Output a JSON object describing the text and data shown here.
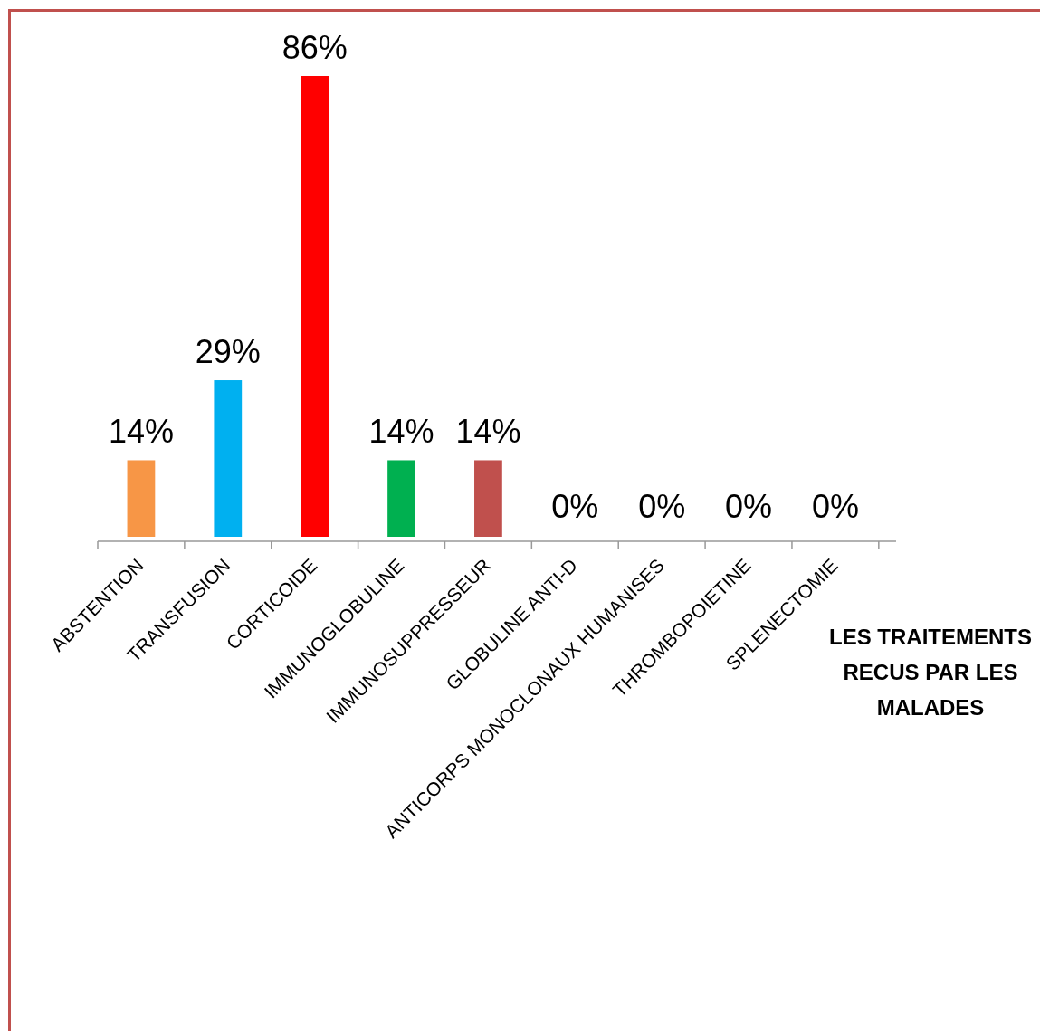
{
  "chart_data": {
    "type": "bar",
    "xlabel": "LES TRAITEMENTS RECUS PAR LES MALADES",
    "categories": [
      "ABSTENTION",
      "TRANSFUSION",
      "CORTICOIDE",
      "IMMUNOGLOBULINE",
      "IMMUNOSUPPRESSEUR",
      "GLOBULINE ANTI-D",
      "ANTICORPS MONOCLONAUX HUMANISES",
      "THROMBOPOIETINE",
      "SPLENECTOMIE"
    ],
    "values": [
      14,
      29,
      86,
      14,
      14,
      0,
      0,
      0,
      0
    ],
    "colors": [
      "#f79646",
      "#00b0f0",
      "#ff0000",
      "#00b050",
      "#c0504d",
      "#e00000",
      "#000000",
      "#d4a017",
      "#c0504d"
    ],
    "value_labels": [
      "14%",
      "29%",
      "86%",
      "14%",
      "14%",
      "0%",
      "0%",
      "0%",
      "0%"
    ],
    "grid": false
  }
}
